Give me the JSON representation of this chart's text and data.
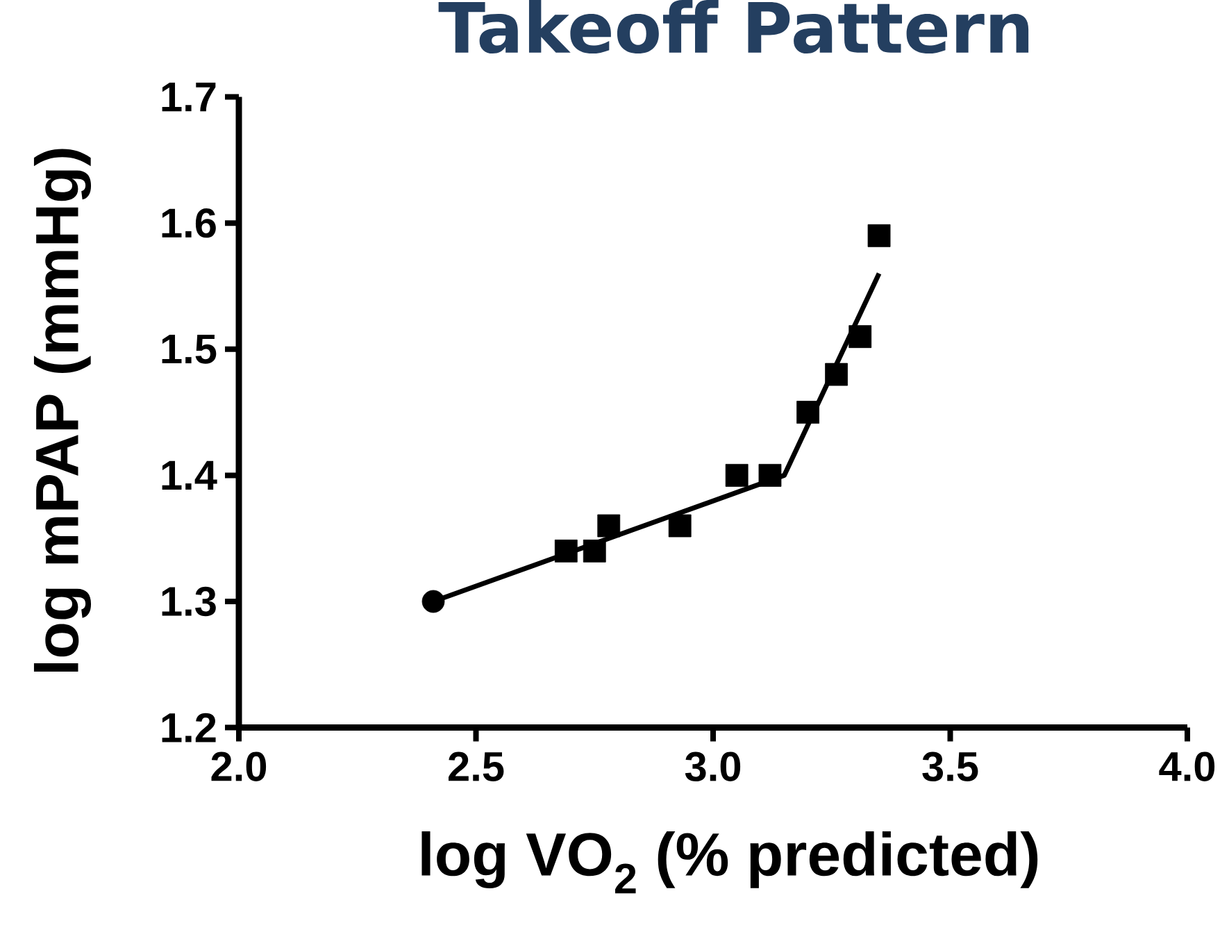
{
  "chart_data": {
    "type": "scatter",
    "title": "Takeoff Pattern",
    "xlabel": "log VO$_{2}$ (% predicted)",
    "ylabel": "log mPAP (mmHg)",
    "xlim": [
      2.0,
      4.0
    ],
    "ylim": [
      1.2,
      1.7
    ],
    "xticks": [
      {
        "value": 2.0,
        "label": "2.0"
      },
      2.5,
      {
        "value": 3.0,
        "label": "3.0"
      },
      3.5,
      {
        "value": 4.0,
        "label": "4.0"
      }
    ],
    "yticks": [
      1.2,
      1.3,
      1.4,
      1.5,
      1.6,
      1.7
    ],
    "grid": false,
    "series": [
      {
        "marker": "circle",
        "color": "#000000",
        "x": [
          2.41
        ],
        "values": [
          1.3
        ]
      },
      {
        "marker": "square",
        "color": "#000000",
        "x": [
          2.69,
          2.75,
          2.78,
          2.93,
          3.05,
          3.12,
          3.2,
          3.26,
          3.31,
          3.35
        ],
        "values": [
          1.34,
          1.34,
          1.36,
          1.36,
          1.4,
          1.4,
          1.45,
          1.48,
          1.51,
          1.59
        ]
      },
      {
        "type": "line",
        "marker": "none",
        "color": "#000000",
        "x": [
          2.41,
          3.15,
          3.35
        ],
        "values": [
          1.3,
          1.4,
          1.56
        ]
      }
    ]
  }
}
